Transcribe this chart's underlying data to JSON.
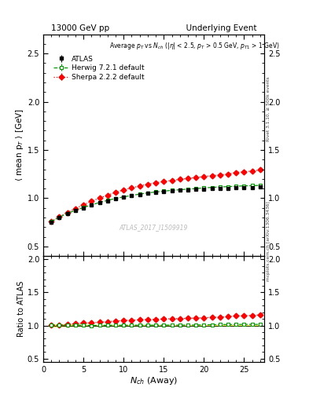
{
  "title_left": "13000 GeV pp",
  "title_right": "Underlying Event",
  "watermark": "ATLAS_2017_I1509919",
  "right_label_top": "Rivet 3.1.10, ≥ 500k events",
  "right_label_bottom": "mcplots.cern.ch [arXiv:1306.3436]",
  "xlabel": "N$_{ch}$ (Away)",
  "ylabel_main": "⟨ mean p$_{T}$ ⟩ [GeV]",
  "ylabel_ratio": "Ratio to ATLAS",
  "xlim": [
    0,
    27.5
  ],
  "ylim_main": [
    0.4,
    2.7
  ],
  "ylim_ratio": [
    0.45,
    2.05
  ],
  "yticks_main": [
    0.5,
    1.0,
    1.5,
    2.0,
    2.5
  ],
  "yticks_ratio": [
    0.5,
    1.0,
    1.5,
    2.0
  ],
  "atlas_x": [
    1,
    2,
    3,
    4,
    5,
    6,
    7,
    8,
    9,
    10,
    11,
    12,
    13,
    14,
    15,
    16,
    17,
    18,
    19,
    20,
    21,
    22,
    23,
    24,
    25,
    26,
    27
  ],
  "atlas_y": [
    0.755,
    0.8,
    0.84,
    0.87,
    0.9,
    0.93,
    0.955,
    0.975,
    0.993,
    1.01,
    1.025,
    1.038,
    1.05,
    1.06,
    1.068,
    1.075,
    1.082,
    1.087,
    1.092,
    1.096,
    1.099,
    1.102,
    1.104,
    1.107,
    1.11,
    1.112,
    1.115
  ],
  "atlas_yerr": [
    0.012,
    0.009,
    0.008,
    0.007,
    0.007,
    0.006,
    0.006,
    0.006,
    0.006,
    0.006,
    0.005,
    0.005,
    0.005,
    0.005,
    0.005,
    0.005,
    0.005,
    0.005,
    0.005,
    0.005,
    0.005,
    0.005,
    0.005,
    0.005,
    0.005,
    0.005,
    0.007
  ],
  "herwig_x": [
    1,
    2,
    3,
    4,
    5,
    6,
    7,
    8,
    9,
    10,
    11,
    12,
    13,
    14,
    15,
    16,
    17,
    18,
    19,
    20,
    21,
    22,
    23,
    24,
    25,
    26,
    27
  ],
  "herwig_y": [
    0.758,
    0.803,
    0.843,
    0.874,
    0.904,
    0.93,
    0.956,
    0.978,
    0.997,
    1.014,
    1.029,
    1.043,
    1.055,
    1.065,
    1.073,
    1.082,
    1.088,
    1.094,
    1.1,
    1.107,
    1.112,
    1.117,
    1.12,
    1.124,
    1.128,
    1.13,
    1.133
  ],
  "herwig_yerr": [
    0.008,
    0.006,
    0.005,
    0.005,
    0.004,
    0.004,
    0.004,
    0.004,
    0.004,
    0.004,
    0.004,
    0.004,
    0.004,
    0.004,
    0.004,
    0.004,
    0.004,
    0.004,
    0.004,
    0.004,
    0.004,
    0.004,
    0.004,
    0.004,
    0.004,
    0.004,
    0.005
  ],
  "sherpa_x": [
    1,
    2,
    3,
    4,
    5,
    6,
    7,
    8,
    9,
    10,
    11,
    12,
    13,
    14,
    15,
    16,
    17,
    18,
    19,
    20,
    21,
    22,
    23,
    24,
    25,
    26,
    27
  ],
  "sherpa_y": [
    0.758,
    0.808,
    0.852,
    0.893,
    0.933,
    0.968,
    1.002,
    1.032,
    1.06,
    1.087,
    1.107,
    1.128,
    1.146,
    1.16,
    1.173,
    1.185,
    1.195,
    1.205,
    1.215,
    1.225,
    1.234,
    1.242,
    1.25,
    1.268,
    1.273,
    1.282,
    1.293
  ],
  "sherpa_yerr": [
    0.01,
    0.008,
    0.007,
    0.007,
    0.006,
    0.006,
    0.006,
    0.006,
    0.006,
    0.006,
    0.006,
    0.006,
    0.006,
    0.006,
    0.006,
    0.006,
    0.006,
    0.006,
    0.006,
    0.006,
    0.006,
    0.006,
    0.006,
    0.007,
    0.007,
    0.008,
    0.009
  ],
  "atlas_color": "#000000",
  "herwig_color": "#009900",
  "sherpa_color": "#ff0000",
  "bg_color": "#ffffff"
}
